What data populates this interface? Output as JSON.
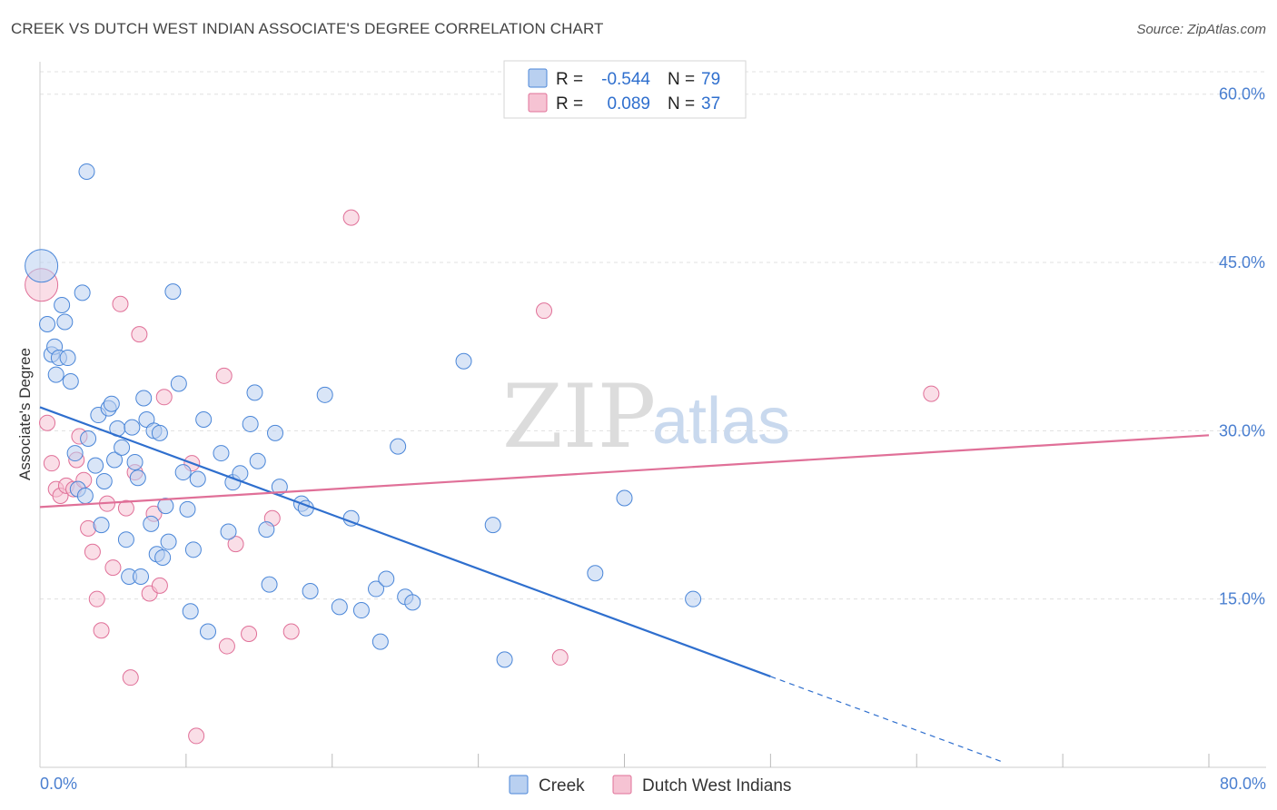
{
  "title": "CREEK VS DUTCH WEST INDIAN ASSOCIATE'S DEGREE CORRELATION CHART",
  "source": "Source: ZipAtlas.com",
  "watermark": {
    "zip": "ZIP",
    "atlas": "atlas"
  },
  "colors": {
    "creek": "#4a86d8",
    "creek_fill": "#b9d0f0",
    "dutch": "#e07098",
    "dutch_fill": "#f6c3d3",
    "tick_text": "#4a7fd0"
  },
  "legend": {
    "rows": [
      {
        "r_label": "R = ",
        "r_value": "-0.544",
        "n_label": "N = ",
        "n_value": "79"
      },
      {
        "r_label": "R = ",
        "r_value": "0.089",
        "n_label": "N = ",
        "n_value": "37"
      }
    ]
  },
  "bottom_legend": {
    "creek": "Creek",
    "dutch": "Dutch West Indians"
  },
  "chart_data": {
    "type": "scatter",
    "title": "CREEK VS DUTCH WEST INDIAN ASSOCIATE'S DEGREE CORRELATION CHART",
    "xlabel": "",
    "ylabel": "Associate's Degree",
    "xlim": [
      0,
      80
    ],
    "ylim": [
      0,
      62
    ],
    "x_tick_labels": [
      "0.0%",
      "80.0%"
    ],
    "y_ticks": [
      15,
      30,
      45,
      60
    ],
    "y_tick_labels": [
      "15.0%",
      "30.0%",
      "45.0%",
      "60.0%"
    ],
    "grid": true,
    "legend_position": "top-center",
    "series": [
      {
        "name": "Creek",
        "r": -0.544,
        "n": 79,
        "trend": {
          "x0": 0,
          "y0": 32.1,
          "x1": 50,
          "y1": 8.1,
          "dashed_to_x": 66
        },
        "points": [
          [
            0.1,
            44.7
          ],
          [
            0.5,
            39.5
          ],
          [
            0.8,
            36.8
          ],
          [
            1.0,
            37.5
          ],
          [
            1.1,
            35.0
          ],
          [
            1.3,
            36.5
          ],
          [
            1.5,
            41.2
          ],
          [
            1.7,
            39.7
          ],
          [
            1.9,
            36.5
          ],
          [
            2.1,
            34.4
          ],
          [
            2.4,
            28.0
          ],
          [
            2.6,
            24.8
          ],
          [
            2.9,
            42.3
          ],
          [
            3.1,
            24.2
          ],
          [
            3.3,
            29.3
          ],
          [
            3.8,
            26.9
          ],
          [
            4.0,
            31.4
          ],
          [
            4.2,
            21.6
          ],
          [
            4.4,
            25.5
          ],
          [
            4.7,
            32.0
          ],
          [
            4.9,
            32.4
          ],
          [
            5.1,
            27.4
          ],
          [
            5.3,
            30.2
          ],
          [
            5.6,
            28.5
          ],
          [
            5.9,
            20.3
          ],
          [
            6.1,
            17.0
          ],
          [
            6.3,
            30.3
          ],
          [
            6.5,
            27.2
          ],
          [
            6.7,
            25.8
          ],
          [
            6.9,
            17.0
          ],
          [
            7.1,
            32.9
          ],
          [
            7.3,
            31.0
          ],
          [
            7.6,
            21.7
          ],
          [
            7.8,
            30.0
          ],
          [
            8.0,
            19.0
          ],
          [
            8.2,
            29.8
          ],
          [
            8.4,
            18.7
          ],
          [
            8.6,
            23.3
          ],
          [
            8.8,
            20.1
          ],
          [
            9.1,
            42.4
          ],
          [
            9.5,
            34.2
          ],
          [
            9.8,
            26.3
          ],
          [
            10.1,
            23.0
          ],
          [
            10.3,
            13.9
          ],
          [
            10.5,
            19.4
          ],
          [
            10.8,
            25.7
          ],
          [
            11.2,
            31.0
          ],
          [
            11.5,
            12.1
          ],
          [
            12.4,
            28.0
          ],
          [
            12.9,
            21.0
          ],
          [
            13.2,
            25.4
          ],
          [
            13.7,
            26.2
          ],
          [
            14.4,
            30.6
          ],
          [
            14.7,
            33.4
          ],
          [
            14.9,
            27.3
          ],
          [
            15.5,
            21.2
          ],
          [
            15.7,
            16.3
          ],
          [
            16.1,
            29.8
          ],
          [
            16.4,
            25.0
          ],
          [
            17.9,
            23.5
          ],
          [
            18.2,
            23.1
          ],
          [
            18.5,
            15.7
          ],
          [
            19.5,
            33.2
          ],
          [
            20.5,
            14.3
          ],
          [
            21.3,
            22.2
          ],
          [
            22.0,
            14.0
          ],
          [
            23.0,
            15.9
          ],
          [
            23.3,
            11.2
          ],
          [
            23.7,
            16.8
          ],
          [
            24.5,
            28.6
          ],
          [
            25.0,
            15.2
          ],
          [
            25.5,
            14.7
          ],
          [
            29.0,
            36.2
          ],
          [
            31.0,
            21.6
          ],
          [
            31.8,
            9.6
          ],
          [
            38.0,
            17.3
          ],
          [
            40.0,
            24.0
          ],
          [
            44.7,
            15.0
          ],
          [
            3.2,
            53.1
          ]
        ]
      },
      {
        "name": "Dutch West Indians",
        "r": 0.089,
        "n": 37,
        "trend": {
          "x0": 0,
          "y0": 23.2,
          "x1": 80,
          "y1": 29.6
        },
        "points": [
          [
            0.1,
            43.0
          ],
          [
            0.5,
            30.7
          ],
          [
            0.8,
            27.1
          ],
          [
            1.1,
            24.8
          ],
          [
            1.4,
            24.2
          ],
          [
            1.8,
            25.1
          ],
          [
            2.3,
            24.8
          ],
          [
            2.5,
            27.4
          ],
          [
            2.7,
            29.5
          ],
          [
            3.0,
            25.6
          ],
          [
            3.3,
            21.3
          ],
          [
            3.6,
            19.2
          ],
          [
            3.9,
            15.0
          ],
          [
            4.2,
            12.2
          ],
          [
            4.6,
            23.5
          ],
          [
            5.0,
            17.8
          ],
          [
            5.5,
            41.3
          ],
          [
            5.9,
            23.1
          ],
          [
            6.2,
            8.0
          ],
          [
            6.5,
            26.3
          ],
          [
            6.8,
            38.6
          ],
          [
            7.5,
            15.5
          ],
          [
            7.8,
            22.6
          ],
          [
            8.2,
            16.2
          ],
          [
            8.5,
            33.0
          ],
          [
            10.4,
            27.1
          ],
          [
            10.7,
            2.8
          ],
          [
            12.6,
            34.9
          ],
          [
            12.8,
            10.8
          ],
          [
            13.4,
            19.9
          ],
          [
            14.3,
            11.9
          ],
          [
            15.9,
            22.2
          ],
          [
            17.2,
            12.1
          ],
          [
            21.3,
            49.0
          ],
          [
            34.5,
            40.7
          ],
          [
            35.6,
            9.8
          ],
          [
            61.0,
            33.3
          ]
        ]
      }
    ]
  }
}
